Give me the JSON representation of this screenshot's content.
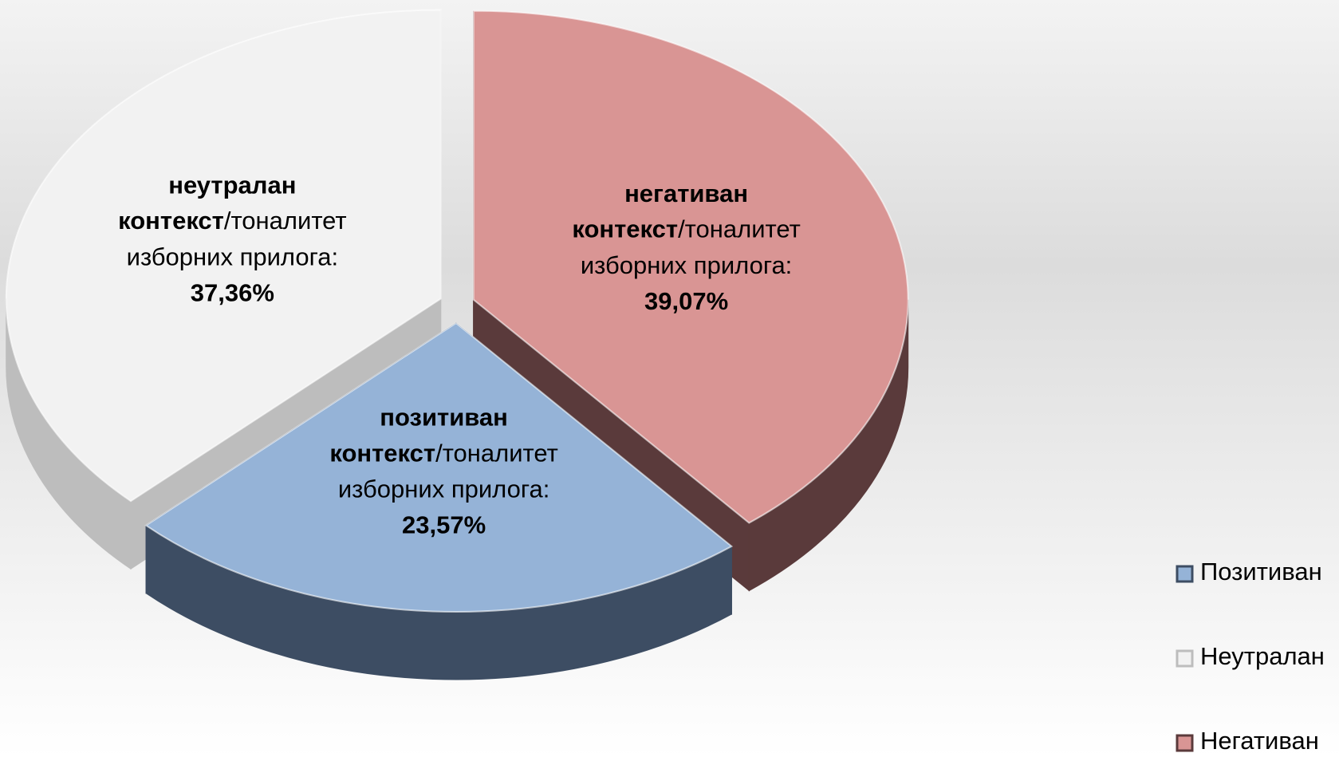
{
  "chart_data": {
    "type": "pie3d",
    "categories": [
      "Позитиван",
      "Неутралан",
      "Негативан"
    ],
    "values": [
      23.57,
      37.36,
      39.07
    ],
    "value_labels": [
      "23,57%",
      "37,36%",
      "39,07%"
    ],
    "slice_labels": [
      [
        "позитиван",
        "контекст",
        "/тоналитет",
        "изборних прилога:"
      ],
      [
        "неутралан",
        "контекст",
        "/тоналитет",
        "изборних прилога:"
      ],
      [
        "негативан",
        "контекст",
        "/тоналитет",
        "изборних прилога:"
      ]
    ],
    "colors": [
      "#95b3d7",
      "#f2f2f2",
      "#d99594"
    ],
    "side_colors": [
      "#3d4d63",
      "#bdbdbd",
      "#5a3a3b"
    ],
    "legend": "right"
  }
}
